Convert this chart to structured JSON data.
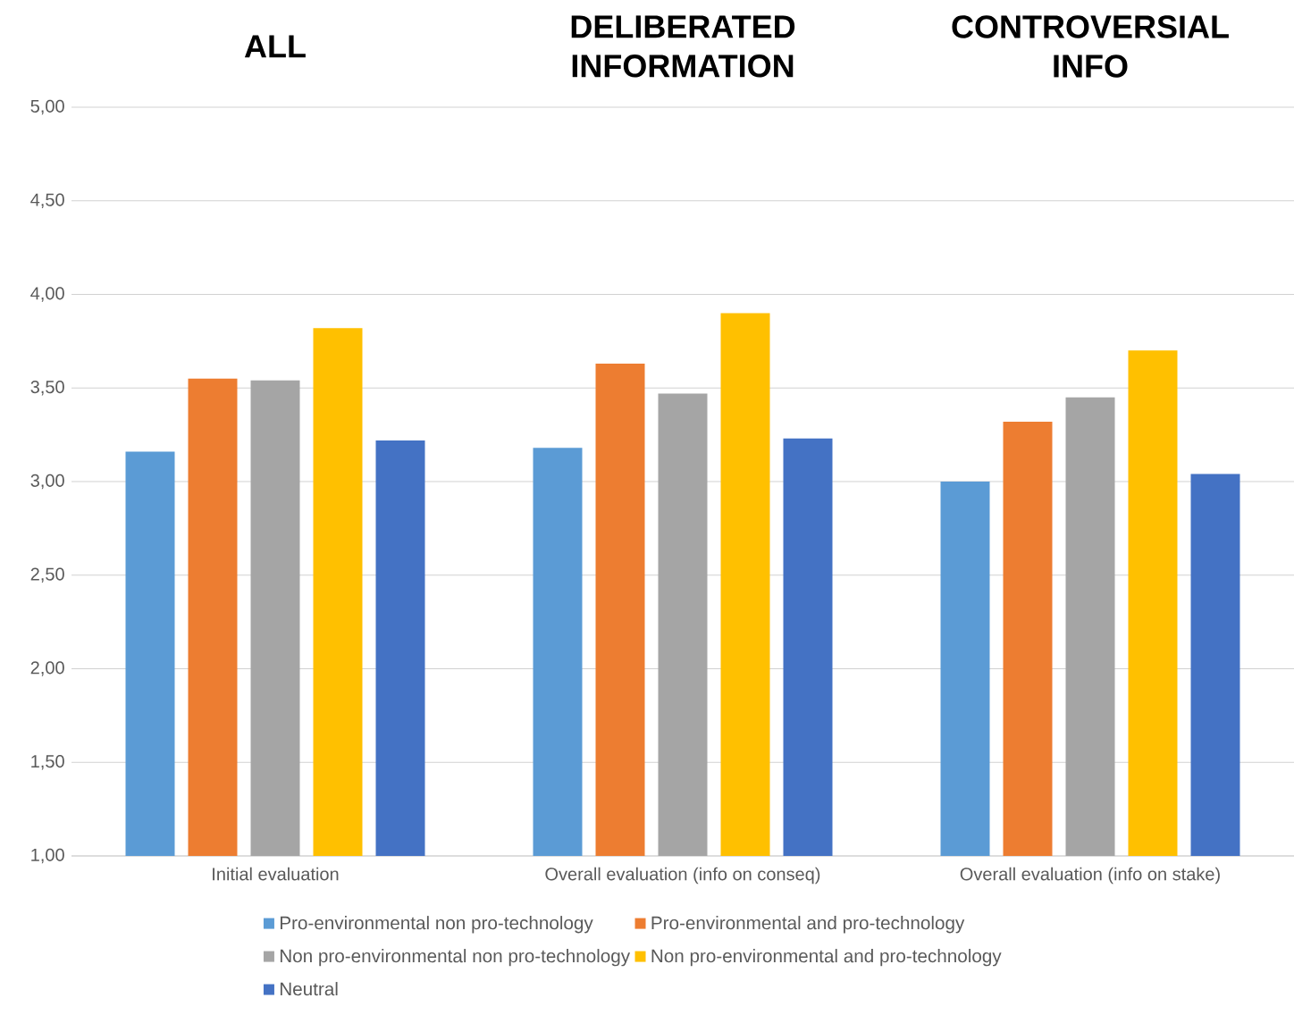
{
  "chart_data": {
    "type": "bar",
    "categories": [
      "Initial evaluation",
      "Overall evaluation (info on conseq)",
      "Overall evaluation (info on stake)"
    ],
    "series": [
      {
        "name": "Pro-environmental non pro-technology",
        "color": "#5b9bd5",
        "values": [
          3.16,
          3.18,
          3.0
        ]
      },
      {
        "name": "Pro-environmental and pro-technology",
        "color": "#ed7d31",
        "values": [
          3.55,
          3.63,
          3.32
        ]
      },
      {
        "name": "Non pro-environmental non pro-technology",
        "color": "#a5a5a5",
        "values": [
          3.54,
          3.47,
          3.45
        ]
      },
      {
        "name": "Non pro-environmental and pro-technology",
        "color": "#ffc000",
        "values": [
          3.82,
          3.9,
          3.7
        ]
      },
      {
        "name": "Neutral",
        "color": "#4472c4",
        "values": [
          3.22,
          3.23,
          3.04
        ]
      }
    ],
    "ylim": [
      1,
      5
    ],
    "yticks": [
      {
        "value": 1,
        "label": "1,00"
      },
      {
        "value": 1.5,
        "label": "1,50"
      },
      {
        "value": 2,
        "label": "2,00"
      },
      {
        "value": 2.5,
        "label": "2,50"
      },
      {
        "value": 3,
        "label": "3,00"
      },
      {
        "value": 3.5,
        "label": "3,50"
      },
      {
        "value": 4,
        "label": "4,00"
      },
      {
        "value": 4.5,
        "label": "4,50"
      },
      {
        "value": 5,
        "label": "5,00"
      }
    ],
    "grid": "y",
    "legend": "bottom",
    "annotations": [
      "ALL",
      "DELIBERATED INFORMATION",
      "CONTROVERSIAL INFO"
    ]
  }
}
